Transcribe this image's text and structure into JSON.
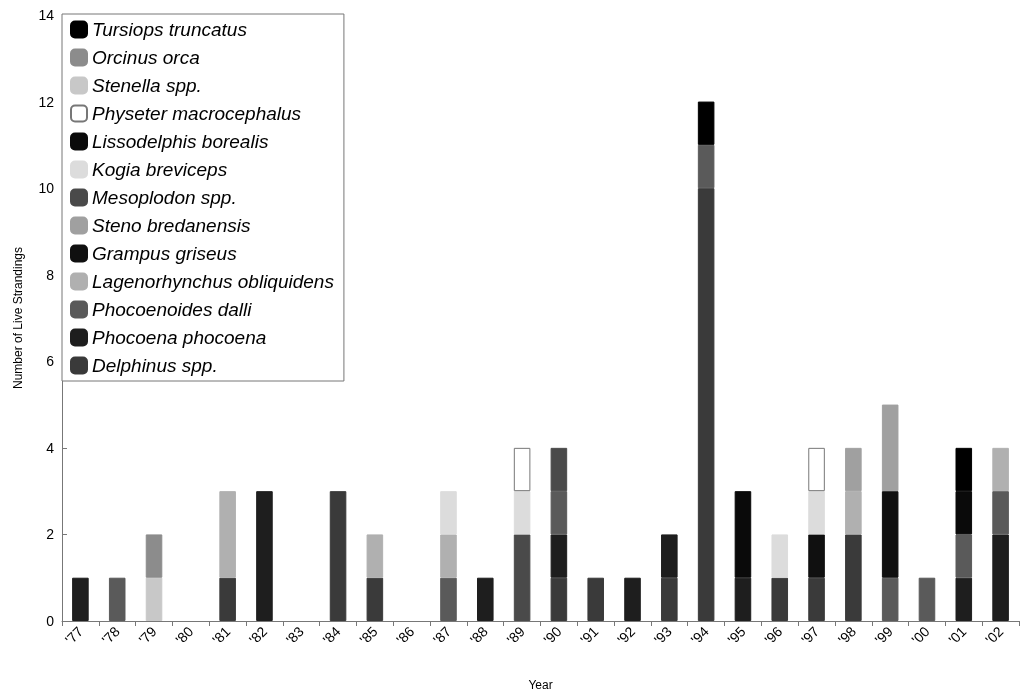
{
  "chart_data": {
    "type": "bar",
    "stacked": true,
    "xlabel": "Year",
    "ylabel": "Number of Live Strandings",
    "ylim": [
      0,
      14
    ],
    "yticks": [
      0,
      2,
      4,
      6,
      8,
      10,
      12,
      14
    ],
    "grid": false,
    "legend": "top left",
    "categories": [
      "'77",
      "'78",
      "'79",
      "'80",
      "'81",
      "'82",
      "'83",
      "'84",
      "'85",
      "'86",
      "'87",
      "'88",
      "'89",
      "'90",
      "'91",
      "'92",
      "'93",
      "'94",
      "'95",
      "'96",
      "'97",
      "'98",
      "'99",
      "'00",
      "'01",
      "'02"
    ],
    "series": [
      {
        "name": "Delphinus spp.",
        "color": "#3a3a3a",
        "values": [
          null,
          null,
          null,
          null,
          1,
          null,
          null,
          3,
          1,
          null,
          null,
          null,
          null,
          1,
          1,
          null,
          1,
          10,
          null,
          1,
          1,
          2,
          null,
          null,
          null,
          null
        ]
      },
      {
        "name": "Phocoena phocoena",
        "color": "#1e1e1e",
        "values": [
          1,
          null,
          null,
          null,
          null,
          3,
          null,
          null,
          null,
          null,
          null,
          1,
          null,
          1,
          null,
          1,
          1,
          null,
          1,
          null,
          null,
          null,
          null,
          null,
          1,
          2
        ]
      },
      {
        "name": "Phocoenoides dalli",
        "color": "#5a5a5a",
        "values": [
          null,
          1,
          null,
          null,
          null,
          null,
          null,
          null,
          null,
          null,
          1,
          null,
          null,
          1,
          null,
          null,
          null,
          1,
          null,
          null,
          null,
          null,
          1,
          1,
          1,
          1
        ]
      },
      {
        "name": "Lagenorhynchus obliquidens",
        "color": "#b0b0b0",
        "values": [
          null,
          null,
          null,
          null,
          2,
          null,
          null,
          null,
          1,
          null,
          1,
          null,
          null,
          null,
          null,
          null,
          null,
          null,
          null,
          null,
          null,
          1,
          null,
          null,
          null,
          1
        ]
      },
      {
        "name": "Grampus griseus",
        "color": "#101010",
        "values": [
          null,
          null,
          null,
          null,
          null,
          null,
          null,
          null,
          null,
          null,
          null,
          null,
          null,
          null,
          null,
          null,
          null,
          null,
          null,
          null,
          1,
          null,
          2,
          null,
          null,
          null
        ]
      },
      {
        "name": "Steno bredanensis",
        "color": "#a0a0a0",
        "values": [
          null,
          null,
          null,
          null,
          null,
          null,
          null,
          null,
          null,
          null,
          null,
          null,
          null,
          null,
          null,
          null,
          null,
          null,
          null,
          null,
          null,
          1,
          2,
          null,
          null,
          null
        ]
      },
      {
        "name": "Mesoplodon spp.",
        "color": "#4a4a4a",
        "values": [
          null,
          null,
          null,
          null,
          null,
          null,
          null,
          null,
          null,
          null,
          null,
          null,
          2,
          1,
          null,
          null,
          null,
          null,
          null,
          null,
          null,
          null,
          null,
          null,
          null,
          null
        ]
      },
      {
        "name": "Kogia breviceps",
        "color": "#dcdcdc",
        "values": [
          null,
          null,
          null,
          null,
          null,
          null,
          null,
          null,
          null,
          null,
          1,
          null,
          1,
          null,
          null,
          null,
          null,
          null,
          null,
          1,
          1,
          null,
          null,
          null,
          null,
          null
        ]
      },
      {
        "name": "Lissodelphis borealis",
        "color": "#0a0a0a",
        "values": [
          null,
          null,
          null,
          null,
          null,
          null,
          null,
          null,
          null,
          null,
          null,
          null,
          null,
          null,
          null,
          null,
          null,
          null,
          2,
          null,
          null,
          null,
          null,
          null,
          1,
          null
        ]
      },
      {
        "name": "Physeter macrocephalus",
        "color": "#ffffff",
        "values": [
          null,
          null,
          null,
          null,
          null,
          null,
          null,
          null,
          null,
          null,
          null,
          null,
          1,
          null,
          null,
          null,
          null,
          null,
          null,
          null,
          1,
          null,
          null,
          null,
          null,
          null
        ]
      },
      {
        "name": "Stenella spp.",
        "color": "#c8c8c8",
        "values": [
          null,
          null,
          1,
          null,
          null,
          null,
          null,
          null,
          null,
          null,
          null,
          null,
          null,
          null,
          null,
          null,
          null,
          null,
          null,
          null,
          null,
          null,
          null,
          null,
          null,
          null
        ]
      },
      {
        "name": "Orcinus orca",
        "color": "#8c8c8c",
        "values": [
          null,
          null,
          1,
          null,
          null,
          null,
          null,
          null,
          null,
          null,
          null,
          null,
          null,
          null,
          null,
          null,
          null,
          null,
          null,
          null,
          null,
          null,
          null,
          null,
          null,
          null
        ]
      },
      {
        "name": "Tursiops truncatus",
        "color": "#000000",
        "values": [
          null,
          null,
          null,
          null,
          null,
          null,
          null,
          null,
          null,
          null,
          null,
          null,
          null,
          null,
          null,
          null,
          null,
          1,
          null,
          null,
          null,
          null,
          null,
          null,
          1,
          null
        ]
      }
    ]
  }
}
